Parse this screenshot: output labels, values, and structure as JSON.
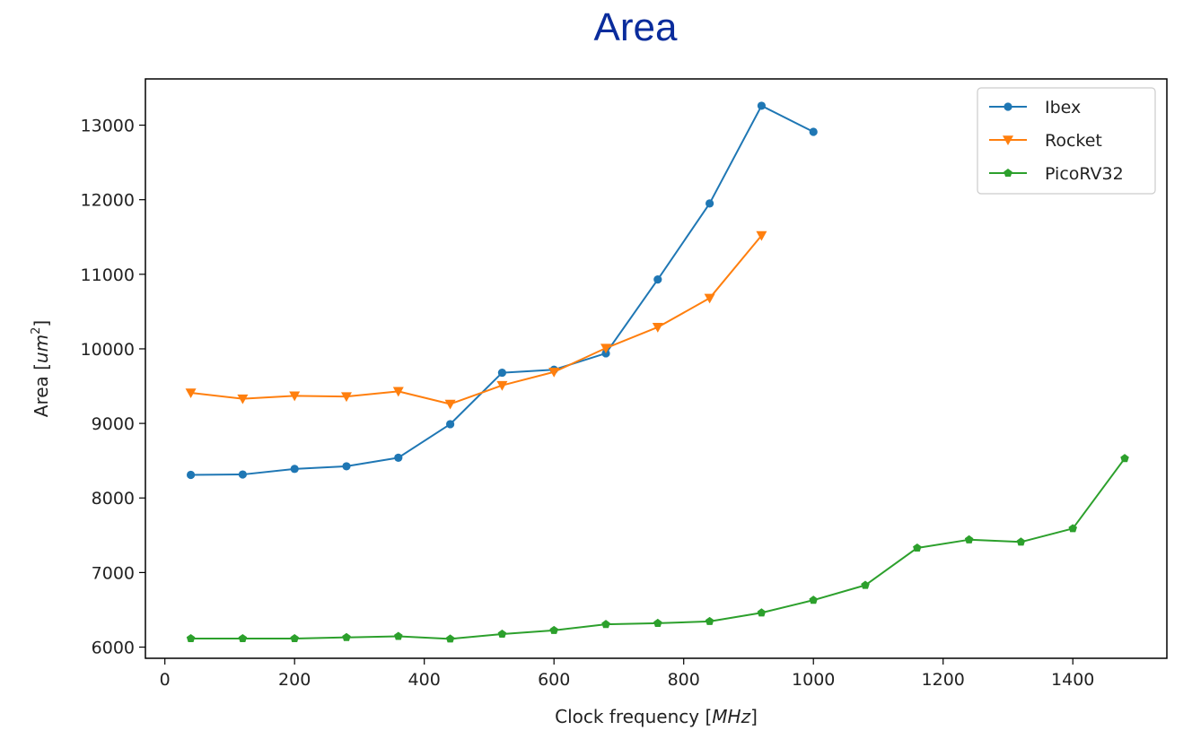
{
  "chart_data": {
    "type": "line",
    "title": "Area",
    "xlabel": "Clock frequency [",
    "xlabel_unit": "MHz",
    "ylabel": "Area [",
    "ylabel_unit": "um",
    "ylabel_exp": "2",
    "xlim": [
      -30,
      1545
    ],
    "ylim": [
      5850,
      13620
    ],
    "xticks": [
      0,
      200,
      400,
      600,
      800,
      1000,
      1200,
      1400
    ],
    "yticks": [
      6000,
      7000,
      8000,
      9000,
      10000,
      11000,
      12000,
      13000
    ],
    "legend_position": "top-right",
    "series": [
      {
        "name": "Ibex",
        "color": "#1f77b4",
        "marker": "circle",
        "x": [
          40,
          120,
          200,
          280,
          360,
          440,
          520,
          600,
          680,
          760,
          840,
          920,
          1000
        ],
        "y": [
          8310,
          8315,
          8390,
          8425,
          8540,
          8990,
          9680,
          9720,
          9940,
          10930,
          11950,
          13260,
          12910
        ]
      },
      {
        "name": "Rocket",
        "color": "#ff7f0e",
        "marker": "triangle-down",
        "x": [
          40,
          120,
          200,
          280,
          360,
          440,
          520,
          600,
          680,
          760,
          840,
          920
        ],
        "y": [
          9410,
          9330,
          9370,
          9360,
          9430,
          9260,
          9510,
          9690,
          10010,
          10290,
          10680,
          11520
        ]
      },
      {
        "name": "PicoRV32",
        "color": "#2ca02c",
        "marker": "pentagon",
        "x": [
          40,
          120,
          200,
          280,
          360,
          440,
          520,
          600,
          680,
          760,
          840,
          920,
          1000,
          1080,
          1160,
          1240,
          1320,
          1400,
          1480
        ],
        "y": [
          6115,
          6115,
          6115,
          6130,
          6145,
          6110,
          6175,
          6225,
          6305,
          6320,
          6345,
          6460,
          6630,
          6830,
          7330,
          7440,
          7410,
          7590,
          8530
        ]
      }
    ]
  }
}
